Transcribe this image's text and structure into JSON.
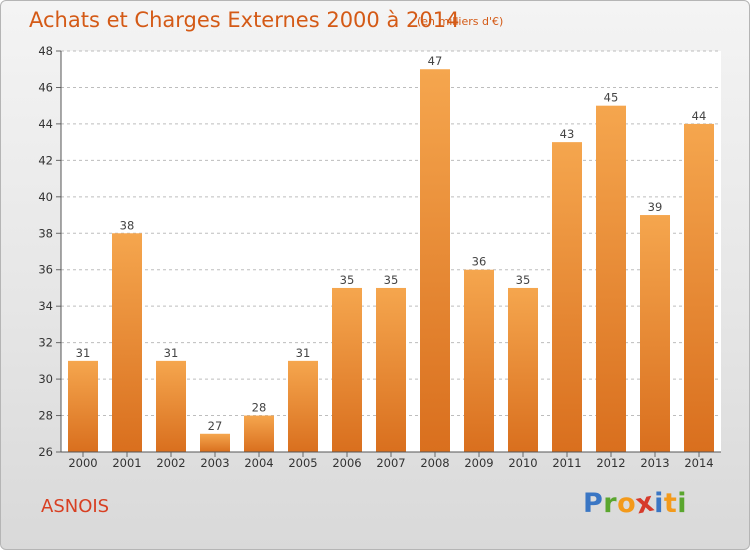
{
  "header": {
    "title": "Achats et Charges Externes 2000 à 2014",
    "subtitle": "(en milliers d'€)"
  },
  "footer": {
    "commune": "ASNOIS",
    "logo_letters": [
      "P",
      "r",
      "o",
      "x",
      "i",
      "t",
      "i"
    ]
  },
  "colors": {
    "bar_top": "#f5a64e",
    "bar_bottom": "#d96f1e",
    "title": "#d45a16",
    "commune": "#d83f22",
    "logo": [
      "#3a76c4",
      "#5aa62e",
      "#f39a1b",
      "#d63a2b",
      "#3a76c4",
      "#f39a1b",
      "#5aa62e"
    ]
  },
  "chart_data": {
    "type": "bar",
    "categories": [
      "2000",
      "2001",
      "2002",
      "2003",
      "2004",
      "2005",
      "2006",
      "2007",
      "2008",
      "2009",
      "2010",
      "2011",
      "2012",
      "2013",
      "2014"
    ],
    "values": [
      31,
      38,
      31,
      27,
      28,
      31,
      35,
      35,
      47,
      36,
      35,
      43,
      45,
      39,
      44
    ],
    "ylim": [
      26,
      48
    ],
    "yticks": [
      26,
      28,
      30,
      32,
      34,
      36,
      38,
      40,
      42,
      44,
      46,
      48
    ],
    "grid": true,
    "title": "Achats et Charges Externes 2000 à 2014",
    "xlabel": "",
    "ylabel": ""
  }
}
